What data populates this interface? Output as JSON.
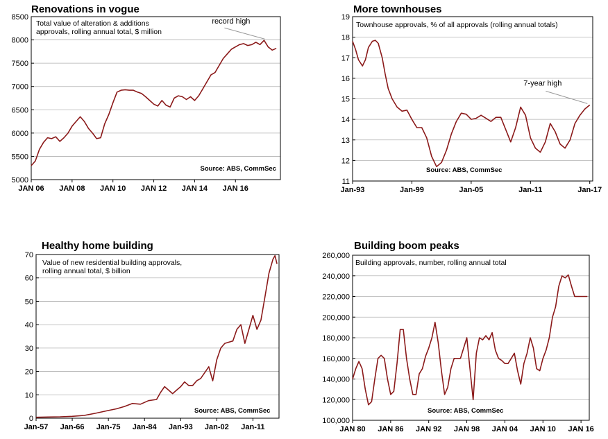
{
  "colors": {
    "line": "#8b1a1a",
    "frame": "#000000",
    "grid": "#b0b0b0",
    "arrow": "#999999"
  },
  "chart_data": [
    {
      "type": "line",
      "title": "Renovations in vogue",
      "subtitle": "Total value of alteration & additions approvals, rolling annual total, $ million",
      "subtitle_lines": [
        "Total value of alteration & additions",
        "approvals, rolling annual total, $ million"
      ],
      "source": "Source: ABS, CommSec",
      "annotation": {
        "text": "record high",
        "x": 2017.5,
        "y": 7990
      },
      "x_domain": [
        2006,
        2018.2
      ],
      "ylim": [
        5000,
        8500
      ],
      "yticks": [
        5000,
        5500,
        6000,
        6500,
        7000,
        7500,
        8000,
        8500
      ],
      "y_tick_labels": [
        "5000",
        "5500",
        "6000",
        "6500",
        "7000",
        "7500",
        "8000",
        "8500"
      ],
      "xticks": [
        2006,
        2008,
        2010,
        2012,
        2014,
        2016
      ],
      "x_tick_labels": [
        "JAN 06",
        "JAN 08",
        "JAN 10",
        "JAN 12",
        "JAN 14",
        "JAN 16"
      ],
      "series": [
        {
          "x": [
            2006.0,
            2006.2,
            2006.4,
            2006.6,
            2006.8,
            2007.0,
            2007.2,
            2007.4,
            2007.6,
            2007.8,
            2008.0,
            2008.2,
            2008.4,
            2008.6,
            2008.8,
            2009.0,
            2009.2,
            2009.4,
            2009.6,
            2009.8,
            2010.0,
            2010.2,
            2010.4,
            2010.6,
            2010.8,
            2011.0,
            2011.2,
            2011.4,
            2011.6,
            2011.8,
            2012.0,
            2012.2,
            2012.4,
            2012.6,
            2012.8,
            2013.0,
            2013.2,
            2013.4,
            2013.6,
            2013.8,
            2014.0,
            2014.2,
            2014.4,
            2014.6,
            2014.8,
            2015.0,
            2015.2,
            2015.4,
            2015.6,
            2015.8,
            2016.0,
            2016.2,
            2016.4,
            2016.6,
            2016.8,
            2017.0,
            2017.2,
            2017.4,
            2017.6,
            2017.8,
            2018.0
          ],
          "y": [
            5300,
            5400,
            5650,
            5800,
            5900,
            5880,
            5920,
            5820,
            5900,
            6000,
            6150,
            6250,
            6350,
            6250,
            6100,
            6000,
            5880,
            5900,
            6200,
            6400,
            6650,
            6880,
            6920,
            6930,
            6920,
            6920,
            6880,
            6850,
            6780,
            6700,
            6620,
            6580,
            6700,
            6600,
            6560,
            6750,
            6800,
            6780,
            6720,
            6780,
            6700,
            6800,
            6950,
            7100,
            7250,
            7300,
            7450,
            7600,
            7700,
            7800,
            7850,
            7900,
            7920,
            7880,
            7900,
            7950,
            7900,
            7990,
            7850,
            7780,
            7820
          ]
        }
      ]
    },
    {
      "type": "line",
      "title": "More townhouses",
      "subtitle": "Townhouse approvals, % of all approvals (rolling annual totals)",
      "subtitle_lines": [
        "Townhouse approvals, % of all approvals (rolling annual totals)"
      ],
      "source": "Source: ABS, CommSec",
      "annotation": {
        "text": "7-year high",
        "x": 2016.9,
        "y": 14.7
      },
      "x_domain": [
        1993,
        2017.3
      ],
      "ylim": [
        11,
        19
      ],
      "yticks": [
        11,
        12,
        13,
        14,
        15,
        16,
        17,
        18,
        19
      ],
      "y_tick_labels": [
        "11",
        "12",
        "13",
        "14",
        "15",
        "16",
        "17",
        "18",
        "19"
      ],
      "xticks": [
        1993,
        1999,
        2005,
        2011,
        2017
      ],
      "x_tick_labels": [
        "Jan-93",
        "Jan-99",
        "Jan-05",
        "Jan-11",
        "Jan-17"
      ],
      "series": [
        {
          "x": [
            1993.0,
            1993.3,
            1993.6,
            1994.0,
            1994.3,
            1994.6,
            1995.0,
            1995.3,
            1995.6,
            1996.0,
            1996.3,
            1996.6,
            1997.0,
            1997.5,
            1998.0,
            1998.5,
            1999.0,
            1999.5,
            2000.0,
            2000.5,
            2001.0,
            2001.5,
            2002.0,
            2002.5,
            2003.0,
            2003.5,
            2004.0,
            2004.5,
            2005.0,
            2005.5,
            2006.0,
            2006.5,
            2007.0,
            2007.5,
            2008.0,
            2008.5,
            2009.0,
            2009.5,
            2010.0,
            2010.5,
            2011.0,
            2011.5,
            2012.0,
            2012.5,
            2013.0,
            2013.5,
            2014.0,
            2014.5,
            2015.0,
            2015.5,
            2016.0,
            2016.5,
            2017.0
          ],
          "y": [
            17.8,
            17.4,
            16.9,
            16.6,
            16.9,
            17.5,
            17.8,
            17.85,
            17.7,
            17.0,
            16.2,
            15.5,
            15.0,
            14.6,
            14.4,
            14.45,
            14.0,
            13.6,
            13.6,
            13.1,
            12.2,
            11.7,
            11.9,
            12.5,
            13.3,
            13.9,
            14.3,
            14.25,
            14.0,
            14.05,
            14.2,
            14.05,
            13.9,
            14.1,
            14.1,
            13.5,
            12.9,
            13.6,
            14.6,
            14.2,
            13.1,
            12.6,
            12.4,
            12.9,
            13.8,
            13.4,
            12.8,
            12.6,
            13.0,
            13.8,
            14.2,
            14.5,
            14.7
          ]
        }
      ]
    },
    {
      "type": "line",
      "title": "Healthy home building",
      "subtitle": "Value of new residential building approvals, rolling annual total, $ billion",
      "subtitle_lines": [
        "Value of new residential building approvals,",
        "rolling annual total, $ billion"
      ],
      "source": "Source: ABS, CommSec",
      "x_domain": [
        1957,
        2017.5
      ],
      "ylim": [
        0,
        70
      ],
      "yticks": [
        0,
        10,
        20,
        30,
        40,
        50,
        60,
        70
      ],
      "y_tick_labels": [
        "0",
        "10",
        "20",
        "30",
        "40",
        "50",
        "60",
        "70"
      ],
      "xticks": [
        1957,
        1966,
        1975,
        1984,
        1993,
        2002,
        2011
      ],
      "x_tick_labels": [
        "Jan-57",
        "Jan-66",
        "Jan-75",
        "Jan-84",
        "Jan-93",
        "Jan-02",
        "Jan-11"
      ],
      "series": [
        {
          "x": [
            1957,
            1960,
            1963,
            1966,
            1969,
            1972,
            1975,
            1977,
            1979,
            1981,
            1983,
            1985,
            1987,
            1988,
            1989,
            1990,
            1991,
            1992,
            1993,
            1994,
            1995,
            1996,
            1997,
            1998,
            1999,
            2000,
            2001,
            2002,
            2003,
            2004,
            2005,
            2006,
            2007,
            2008,
            2009,
            2010,
            2011,
            2012,
            2013,
            2014,
            2015,
            2016,
            2016.5,
            2017
          ],
          "y": [
            0.4,
            0.5,
            0.6,
            0.8,
            1.2,
            2.2,
            3.3,
            4.0,
            5.0,
            6.3,
            6.0,
            7.5,
            8.0,
            11.0,
            13.5,
            12.0,
            10.5,
            12.0,
            13.5,
            15.5,
            14.0,
            14.0,
            16.0,
            17.0,
            19.5,
            22.0,
            16.0,
            25.0,
            30.0,
            32.0,
            32.5,
            33.0,
            38.0,
            40.0,
            32.0,
            38.0,
            44.0,
            38.0,
            42.0,
            52.0,
            62.0,
            68.0,
            69.5,
            66.0
          ]
        }
      ]
    },
    {
      "type": "line",
      "title": "Building boom peaks",
      "subtitle": "Building approvals, number, rolling annual total",
      "subtitle_lines": [
        "Building approvals, number, rolling annual total"
      ],
      "source": "Source: ABS, CommSec",
      "x_domain": [
        1980,
        2017.3
      ],
      "ylim": [
        100000,
        260000
      ],
      "yticks": [
        100000,
        120000,
        140000,
        160000,
        180000,
        200000,
        220000,
        240000,
        260000
      ],
      "y_tick_labels": [
        "100,000",
        "120,000",
        "140,000",
        "160,000",
        "180,000",
        "200,000",
        "220,000",
        "240,000",
        "260,000"
      ],
      "xticks": [
        1980,
        1986,
        1992,
        1998,
        2004,
        2010,
        2016
      ],
      "x_tick_labels": [
        "JAN 80",
        "JAN 86",
        "JAN 92",
        "JAN 98",
        "JAN 04",
        "JAN 10",
        "JAN 16"
      ],
      "series": [
        {
          "x": [
            1980.0,
            1980.5,
            1981.0,
            1981.5,
            1982.0,
            1982.5,
            1983.0,
            1983.5,
            1984.0,
            1984.5,
            1985.0,
            1985.5,
            1986.0,
            1986.5,
            1987.0,
            1987.5,
            1988.0,
            1988.5,
            1989.0,
            1989.5,
            1990.0,
            1990.5,
            1991.0,
            1991.5,
            1992.0,
            1992.5,
            1993.0,
            1993.5,
            1994.0,
            1994.5,
            1995.0,
            1995.5,
            1996.0,
            1996.5,
            1997.0,
            1997.5,
            1998.0,
            1998.5,
            1999.0,
            1999.5,
            2000.0,
            2000.5,
            2001.0,
            2001.5,
            2002.0,
            2002.5,
            2003.0,
            2003.5,
            2004.0,
            2004.5,
            2005.0,
            2005.5,
            2006.0,
            2006.5,
            2007.0,
            2007.5,
            2008.0,
            2008.5,
            2009.0,
            2009.5,
            2010.0,
            2010.5,
            2011.0,
            2011.5,
            2012.0,
            2012.5,
            2013.0,
            2013.5,
            2014.0,
            2014.5,
            2015.0,
            2015.5,
            2016.0,
            2016.5,
            2017.0
          ],
          "y": [
            140000,
            150000,
            157000,
            150000,
            130000,
            115000,
            118000,
            140000,
            160000,
            163000,
            160000,
            140000,
            125000,
            128000,
            155000,
            188000,
            188000,
            160000,
            140000,
            125000,
            125000,
            145000,
            150000,
            162000,
            170000,
            180000,
            195000,
            175000,
            148000,
            125000,
            132000,
            150000,
            160000,
            160000,
            160000,
            170000,
            180000,
            150000,
            120000,
            165000,
            180000,
            178000,
            182000,
            178000,
            185000,
            168000,
            160000,
            158000,
            155000,
            155000,
            160000,
            165000,
            148000,
            135000,
            155000,
            165000,
            180000,
            170000,
            150000,
            148000,
            160000,
            168000,
            180000,
            200000,
            210000,
            230000,
            240000,
            238000,
            241000,
            230000,
            220000,
            220000,
            220000,
            220000,
            220000
          ]
        }
      ]
    }
  ]
}
